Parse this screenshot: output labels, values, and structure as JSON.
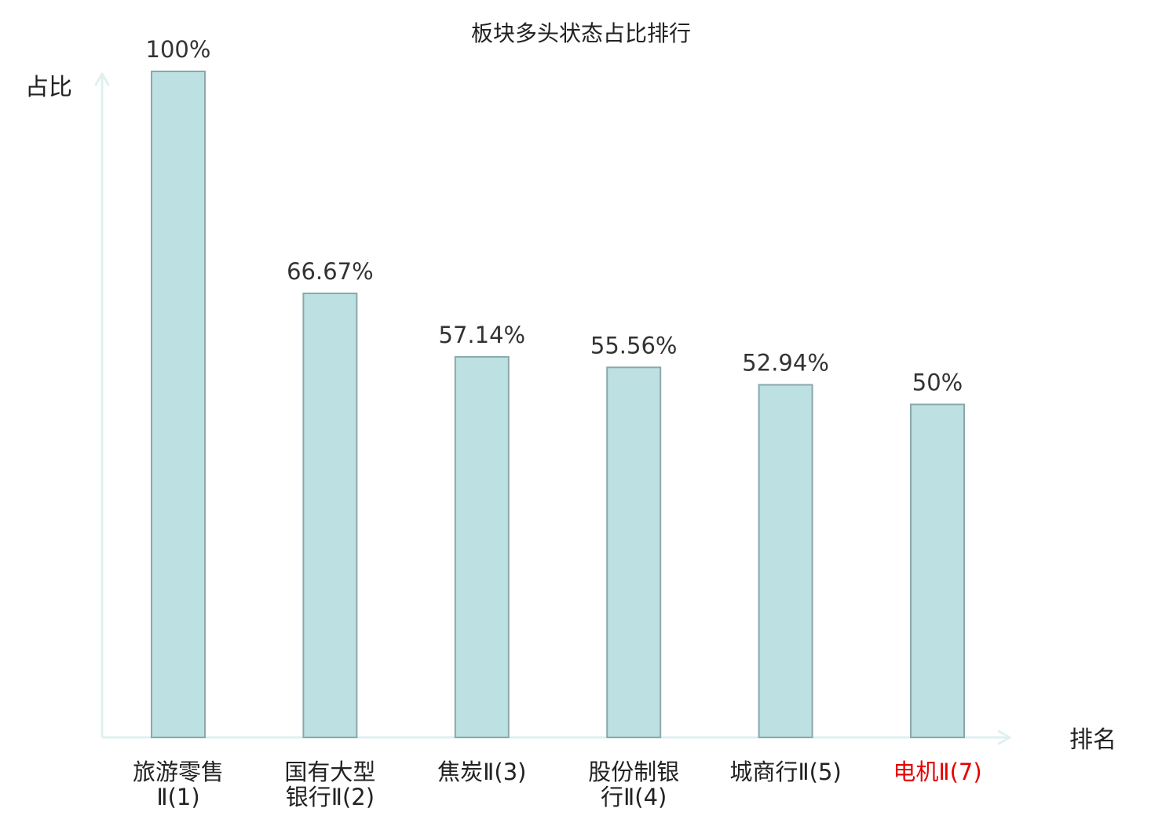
{
  "chart_data": {
    "type": "bar",
    "title": "板块多头状态占比排行",
    "ylabel": "占比",
    "xlabel": "排名",
    "ylim": [
      0,
      100
    ],
    "grid": false,
    "categories": [
      [
        "旅游零售",
        "Ⅱ(1)"
      ],
      [
        "国有大型",
        "银行Ⅱ(2)"
      ],
      [
        "焦炭Ⅱ(3)"
      ],
      [
        "股份制银",
        "行Ⅱ(4)"
      ],
      [
        "城商行Ⅱ(5)"
      ],
      [
        "电机Ⅱ(7)"
      ]
    ],
    "values": [
      100,
      66.67,
      57.14,
      55.56,
      52.94,
      50
    ],
    "value_labels": [
      "100%",
      "66.67%",
      "57.14%",
      "55.56%",
      "52.94%",
      "50%"
    ],
    "highlight_index": 5,
    "colors": {
      "bar_fill": "#bde0e2",
      "bar_stroke": "#8aa8ab",
      "axis": "#dff1ef",
      "text": "#222222",
      "value_text": "#333333",
      "highlight": "#e60000"
    }
  }
}
